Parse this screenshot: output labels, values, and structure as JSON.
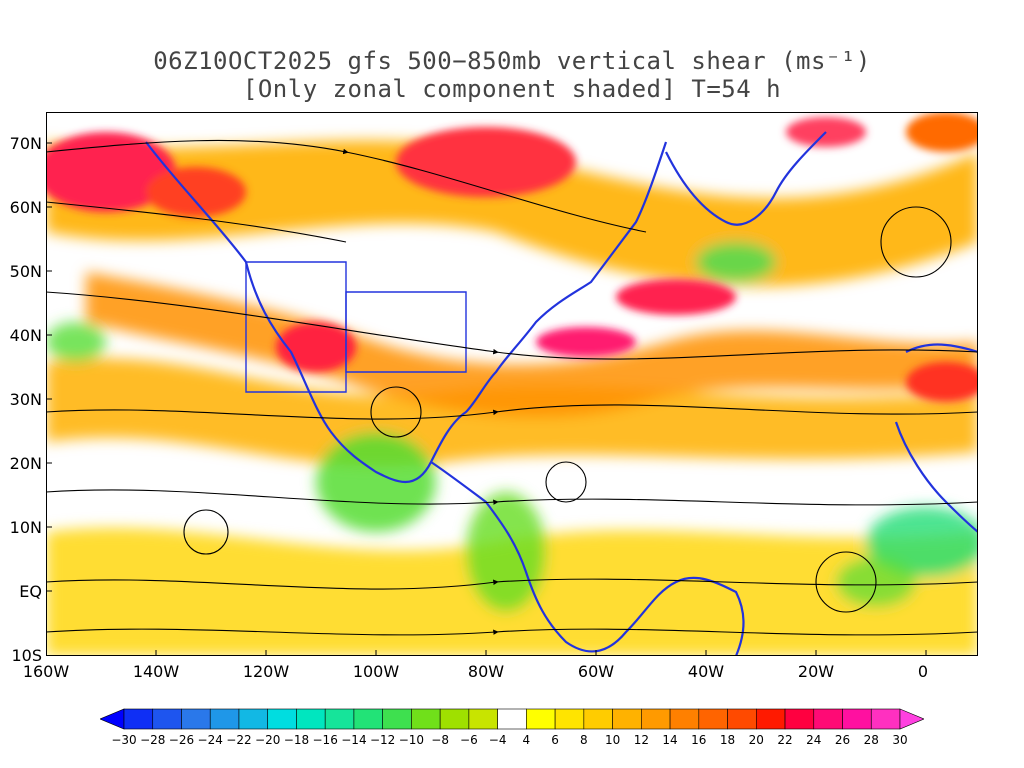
{
  "title_line1": "06Z10OCT2025 gfs 500−850mb vertical shear (ms⁻¹)",
  "title_line2": "[Only zonal component shaded] T=54 h",
  "y_axis_labels": [
    "70N",
    "60N",
    "50N",
    "40N",
    "30N",
    "20N",
    "10N",
    "EQ",
    "10S"
  ],
  "x_axis_labels": [
    "160W",
    "140W",
    "120W",
    "100W",
    "80W",
    "60W",
    "40W",
    "20W",
    "0"
  ],
  "colorbar": {
    "labels": [
      "−30",
      "−28",
      "−26",
      "−24",
      "−22",
      "−20",
      "−18",
      "−16",
      "−14",
      "−12",
      "−10",
      "−8",
      "−6",
      "−4",
      "4",
      "6",
      "8",
      "10",
      "12",
      "14",
      "16",
      "18",
      "20",
      "22",
      "24",
      "26",
      "28",
      "30"
    ],
    "colors": [
      "#0000ff",
      "#0f2ff5",
      "#1e55ef",
      "#2a78ea",
      "#1f97e8",
      "#12b8e4",
      "#00dde0",
      "#00e6bf",
      "#16e49a",
      "#22e377",
      "#3ee04f",
      "#70e01a",
      "#9fe000",
      "#c8e400",
      "#ffffff",
      "#ffff00",
      "#ffe400",
      "#ffcc00",
      "#ffb200",
      "#ff9a00",
      "#ff8000",
      "#ff6400",
      "#ff4a00",
      "#ff1a00",
      "#ff0040",
      "#ff0a75",
      "#ff10a0",
      "#ff30c0",
      "#ff40e0"
    ]
  },
  "chart_data": {
    "type": "heatmap",
    "variable": "500-850mb vertical shear, zonal component (ms-1)",
    "lon_range": [
      -160,
      10
    ],
    "lat_range": [
      -10,
      75
    ],
    "value_range": [
      -30,
      30
    ],
    "notable_maxima": [
      {
        "region": "Gulf of Alaska / 60-70N 160W",
        "approx_value": 24
      },
      {
        "region": "Southwestern US 35-40N 110W",
        "approx_value": 24
      },
      {
        "region": "Western Atlantic 40N 70W",
        "approx_value": 26
      },
      {
        "region": "Hudson Bay / Canada 65N 85W",
        "approx_value": 26
      },
      {
        "region": "North Atlantic 45N 50W",
        "approx_value": 24
      },
      {
        "region": "North Africa 30N 0",
        "approx_value": 22
      }
    ],
    "notable_minima": [
      {
        "region": "Central America 10-20N 100W",
        "approx_value": -10
      },
      {
        "region": "Northern South America 5N 75W",
        "approx_value": -10
      },
      {
        "region": "Equatorial Africa 5N 10E",
        "approx_value": -12
      }
    ],
    "overlay": "streamlines of shear vector"
  }
}
